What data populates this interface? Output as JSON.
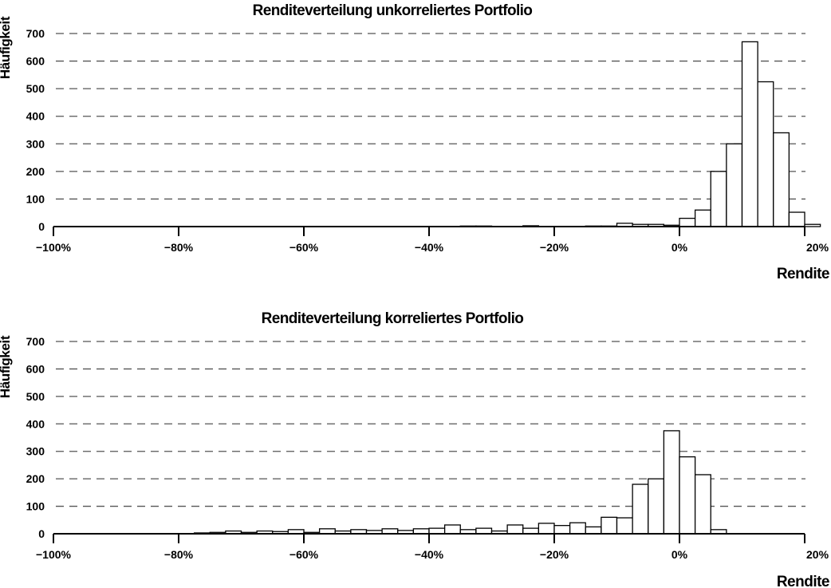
{
  "chart_data": [
    {
      "type": "bar",
      "title": "Renditeverteilung unkorreliertes Portfolio",
      "ylabel": "Häufigkeit",
      "xlabel": "Rendite",
      "xlim": [
        -100,
        20
      ],
      "ylim": [
        0,
        700
      ],
      "bin_width": 2.5,
      "bin_start": -100,
      "yticks": [
        "0",
        "100",
        "200",
        "300",
        "400",
        "500",
        "600",
        "700"
      ],
      "xticks": [
        "−100%",
        "−80%",
        "−60%",
        "−40%",
        "−20%",
        "0%",
        "20%"
      ],
      "grid": true,
      "values": [
        0,
        0,
        0,
        0,
        0,
        0,
        0,
        0,
        0,
        0,
        0,
        0,
        0,
        0,
        0,
        0,
        1,
        0,
        1,
        1,
        1,
        1,
        0,
        1,
        1,
        1,
        2,
        2,
        0,
        1,
        3,
        1,
        1,
        1,
        2,
        2,
        12,
        8,
        8,
        5,
        30,
        60,
        200,
        300,
        670,
        525,
        340,
        52,
        8,
        0
      ]
    },
    {
      "type": "bar",
      "title": "Renditeverteilung korreliertes Portfolio",
      "ylabel": "Häufigkeit",
      "xlabel": "Rendite",
      "xlim": [
        -100,
        20
      ],
      "ylim": [
        0,
        700
      ],
      "bin_width": 2.5,
      "bin_start": -100,
      "yticks": [
        "0",
        "100",
        "200",
        "300",
        "400",
        "500",
        "600",
        "700"
      ],
      "xticks": [
        "−100%",
        "−80%",
        "−60%",
        "−40%",
        "−20%",
        "0%",
        "20%"
      ],
      "grid": true,
      "values": [
        0,
        0,
        0,
        0,
        1,
        0,
        0,
        0,
        0,
        3,
        5,
        10,
        5,
        10,
        8,
        15,
        5,
        18,
        10,
        15,
        12,
        18,
        12,
        18,
        20,
        32,
        15,
        20,
        10,
        32,
        20,
        38,
        30,
        40,
        25,
        60,
        58,
        180,
        200,
        375,
        280,
        215,
        15,
        0,
        0,
        0,
        0,
        0,
        0,
        0
      ]
    }
  ]
}
